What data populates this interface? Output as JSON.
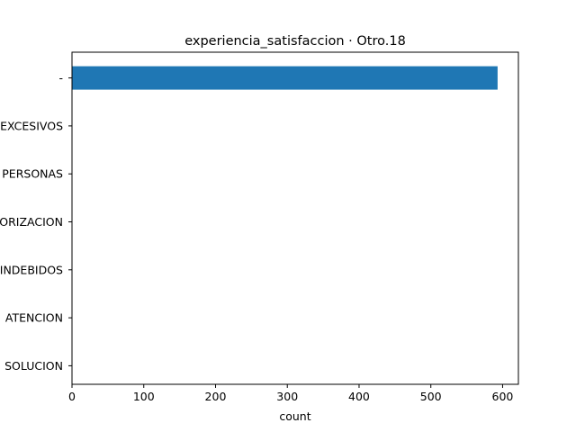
{
  "chart_data": {
    "type": "bar",
    "orientation": "horizontal",
    "title": "experiencia_satisfaccion · Otro.18",
    "xlabel": "count",
    "ylabel": "",
    "categories": [
      "SOLUCION",
      "ATENCION",
      "INDEBIDOS",
      "ORIZACION",
      "PERSONAS",
      "EXCESIVOS",
      "-"
    ],
    "values": [
      0,
      0,
      0,
      0,
      0,
      0,
      593
    ],
    "xlim": [
      0,
      622
    ],
    "x_ticks": [
      0,
      100,
      200,
      300,
      400,
      500,
      600
    ],
    "grid": false,
    "bar_color": "#1f77b4"
  }
}
